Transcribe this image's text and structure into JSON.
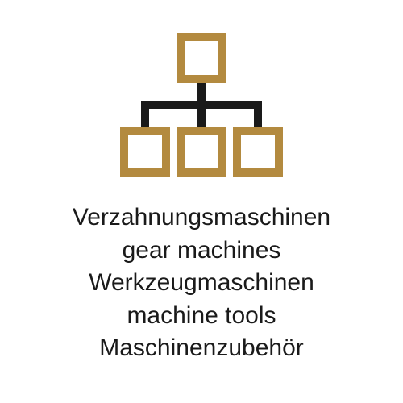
{
  "icon": {
    "name": "org-chart-icon",
    "box_color": "#b38a3f",
    "connector_color": "#1a1a1a",
    "stroke_width": 10,
    "box_size": 52
  },
  "text": {
    "lines": [
      "Verzahnungsmaschinen",
      "gear machines",
      "Werkzeugmaschinen",
      "machine tools",
      "Maschinenzubehör"
    ],
    "color": "#1a1a1a",
    "font_size": 30
  }
}
